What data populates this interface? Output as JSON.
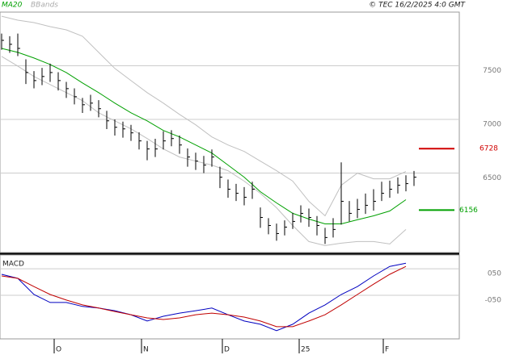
{
  "header": {
    "ma_label": "MA20",
    "bands_label": "BBands",
    "source": "© TEC 16/2/2025 4:0 GMT"
  },
  "chart_data": [
    {
      "type": "ohlc",
      "xlim": [
        -0.2,
        56.6
      ],
      "ylim": [
        5760,
        8000
      ],
      "yticks": [
        6500,
        7000,
        7500
      ],
      "grid": true,
      "x": [
        0,
        1,
        2,
        3,
        4,
        5,
        6,
        7,
        8,
        9,
        10,
        11,
        12,
        13,
        14,
        15,
        16,
        17,
        18,
        19,
        20,
        21,
        22,
        23,
        24,
        25,
        26,
        27,
        28,
        29,
        30,
        31,
        32,
        33,
        34,
        35,
        36,
        37,
        38,
        39,
        40,
        41,
        42,
        43,
        44,
        45,
        46,
        47,
        48,
        49,
        50,
        51
      ],
      "color": "#000000",
      "high": [
        7800,
        7775,
        7800,
        7560,
        7450,
        7480,
        7520,
        7440,
        7350,
        7290,
        7200,
        7230,
        7180,
        7080,
        7000,
        6980,
        6950,
        6880,
        6800,
        6820,
        6890,
        6900,
        6850,
        6730,
        6690,
        6660,
        6720,
        6560,
        6440,
        6400,
        6370,
        6420,
        6180,
        6080,
        6030,
        6060,
        6130,
        6200,
        6170,
        6100,
        5990,
        6080,
        6600,
        6240,
        6260,
        6310,
        6350,
        6420,
        6430,
        6460,
        6480,
        6520
      ],
      "low": [
        7650,
        7620,
        7590,
        7330,
        7290,
        7320,
        7350,
        7270,
        7200,
        7140,
        7060,
        7080,
        7020,
        6910,
        6850,
        6830,
        6800,
        6720,
        6620,
        6650,
        6720,
        6750,
        6680,
        6560,
        6530,
        6500,
        6560,
        6360,
        6270,
        6240,
        6200,
        6260,
        5990,
        5930,
        5870,
        5920,
        5980,
        6040,
        6000,
        5920,
        5840,
        5900,
        6020,
        6050,
        6080,
        6120,
        6150,
        6240,
        6270,
        6310,
        6330,
        6380
      ],
      "close": [
        7737,
        7700,
        7662,
        7437,
        7362,
        7400,
        7437,
        7362,
        7287,
        7212,
        7137,
        7152,
        7100,
        6987,
        6927,
        6912,
        6875,
        6800,
        6725,
        6725,
        6800,
        6822,
        6762,
        6650,
        6612,
        6575,
        6650,
        6462,
        6350,
        6312,
        6275,
        6350,
        6087,
        6012,
        5937,
        5997,
        6050,
        6125,
        6087,
        6012,
        5900,
        5975,
        6237,
        6125,
        6162,
        6200,
        6237,
        6312,
        6350,
        6387,
        6402,
        6462
      ],
      "series": [
        {
          "name": "MA20",
          "color": "#00a000",
          "x": [
            0,
            2,
            4,
            6,
            8,
            10,
            12,
            14,
            16,
            18,
            20,
            22,
            24,
            26,
            28,
            30,
            32,
            34,
            36,
            38,
            40,
            42,
            44,
            46,
            48,
            50
          ],
          "values": [
            7662,
            7625,
            7572,
            7512,
            7437,
            7340,
            7250,
            7152,
            7062,
            6987,
            6897,
            6837,
            6762,
            6687,
            6575,
            6462,
            6327,
            6222,
            6125,
            6072,
            6027,
            6027,
            6065,
            6102,
            6147,
            6252
          ]
        },
        {
          "name": "BBands",
          "color": "#c0c0c0",
          "x": [
            0,
            2,
            4,
            6,
            8,
            10,
            12,
            14,
            16,
            18,
            20,
            22,
            24,
            26,
            28,
            30,
            32,
            34,
            36,
            38,
            40,
            42,
            44,
            46,
            48,
            50
          ],
          "values": [
            7962,
            7925,
            7902,
            7865,
            7835,
            7775,
            7625,
            7475,
            7362,
            7250,
            7152,
            7047,
            6950,
            6837,
            6762,
            6702,
            6612,
            6522,
            6425,
            6237,
            6102,
            6387,
            6500,
            6447,
            6447,
            6515
          ]
        },
        {
          "name": "BBands",
          "color": "#c0c0c0",
          "x": [
            0,
            2,
            4,
            6,
            8,
            10,
            12,
            14,
            16,
            18,
            20,
            22,
            24,
            26,
            28,
            30,
            32,
            34,
            36,
            38,
            40,
            42,
            44,
            46,
            48,
            50
          ],
          "values": [
            7587,
            7497,
            7400,
            7325,
            7250,
            7175,
            7062,
            6987,
            6912,
            6822,
            6725,
            6650,
            6612,
            6575,
            6522,
            6425,
            6312,
            6177,
            6012,
            5862,
            5825,
            5847,
            5862,
            5862,
            5840,
            5975
          ]
        }
      ],
      "levels": [
        {
          "value": 6728,
          "color": "#d00000"
        },
        {
          "value": 6156,
          "color": "#00a000"
        }
      ]
    },
    {
      "type": "line",
      "title": "MACD",
      "xlim": [
        -0.2,
        56.6
      ],
      "ylim": [
        -214,
        102
      ],
      "yticks": [
        {
          "value": 50,
          "label": "050"
        },
        {
          "value": -50,
          "label": "-050"
        }
      ],
      "xticks": [
        {
          "value": 6.5,
          "label": "O"
        },
        {
          "value": 17.3,
          "label": "N"
        },
        {
          "value": 27.3,
          "label": "D"
        },
        {
          "value": 36.8,
          "label": "25"
        },
        {
          "value": 47.2,
          "label": "F"
        }
      ],
      "series": [
        {
          "color": "#0000c0",
          "x": [
            0,
            2,
            4,
            6,
            8,
            10,
            12,
            14,
            16,
            18,
            20,
            22,
            24,
            26,
            28,
            30,
            32,
            34,
            36,
            38,
            40,
            42,
            44,
            46,
            48,
            50
          ],
          "values": [
            29,
            14,
            -47,
            -77,
            -77,
            -92,
            -98,
            -108,
            -123,
            -147,
            -129,
            -117,
            -108,
            -98,
            -123,
            -147,
            -159,
            -183,
            -159,
            -117,
            -86,
            -47,
            -17,
            23,
            59,
            71
          ]
        },
        {
          "color": "#c00000",
          "x": [
            0,
            2,
            4,
            6,
            8,
            10,
            12,
            14,
            16,
            18,
            20,
            22,
            24,
            26,
            28,
            30,
            32,
            34,
            36,
            38,
            40,
            42,
            44,
            46,
            48,
            50
          ],
          "values": [
            23,
            14,
            -17,
            -47,
            -68,
            -86,
            -98,
            -111,
            -123,
            -135,
            -141,
            -135,
            -123,
            -117,
            -123,
            -132,
            -147,
            -168,
            -168,
            -147,
            -123,
            -86,
            -47,
            -8,
            29,
            59
          ]
        }
      ]
    }
  ]
}
